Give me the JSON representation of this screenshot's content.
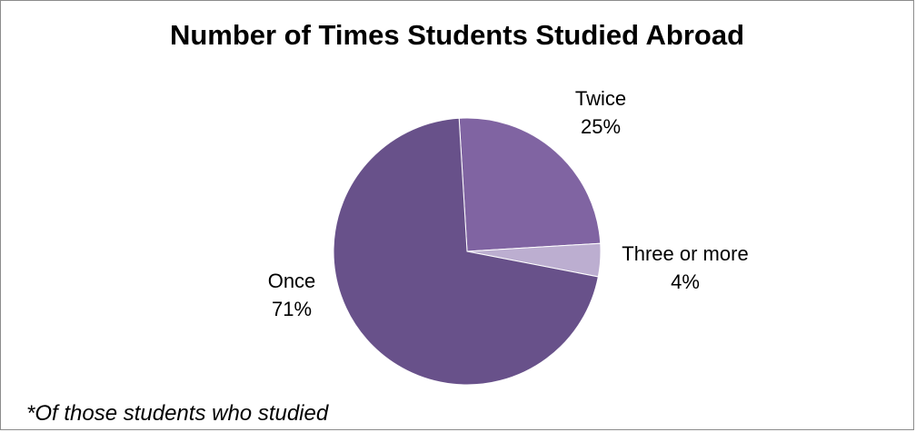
{
  "chart_data": {
    "type": "pie",
    "title": "Number of Times Students Studied Abroad",
    "slices": [
      {
        "label": "Twice",
        "value": 25,
        "value_label": "25%",
        "color": "#8064a2"
      },
      {
        "label": "Three or more",
        "value": 4,
        "value_label": "4%",
        "color": "#bcaed0"
      },
      {
        "label": "Once",
        "value": 71,
        "value_label": "71%",
        "color": "#68518a"
      }
    ],
    "start": "top, clockwise",
    "legend": "none",
    "footnote": "*Of those students who studied"
  }
}
